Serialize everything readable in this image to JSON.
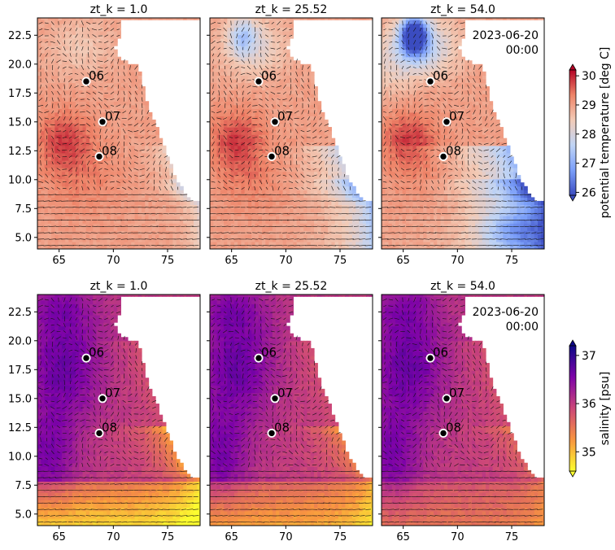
{
  "chart_data": {
    "type": "heatmap",
    "layout": "2x3 grid of map panels with velocity quiver overlay",
    "xlim": [
      63,
      78
    ],
    "ylim": [
      4,
      24
    ],
    "x_ticks": [
      "65",
      "70",
      "75"
    ],
    "y_ticks": [
      "5.0",
      "7.5",
      "10.0",
      "12.5",
      "15.0",
      "17.5",
      "20.0",
      "22.5"
    ],
    "x_tick_values": [
      65,
      70,
      75
    ],
    "y_tick_values": [
      5,
      7.5,
      10,
      12.5,
      15,
      17.5,
      20,
      22.5
    ],
    "panel_titles": [
      "zt_k = 1.0",
      "zt_k = 25.52",
      "zt_k = 54.0"
    ],
    "timestamp": [
      "2023-06-20",
      "00:00"
    ],
    "stations": [
      {
        "label": "06",
        "lon": 67.5,
        "lat": 18.5
      },
      {
        "label": "07",
        "lon": 69.0,
        "lat": 15.0
      },
      {
        "label": "08",
        "lon": 68.7,
        "lat": 12.0
      }
    ],
    "rows": [
      {
        "variable": "potential temperature",
        "colorbar_label": "potential temperature [deg C]",
        "colorbar_range": [
          25.9,
          30.2
        ],
        "colorbar_ticks": [
          "26",
          "27",
          "28",
          "29",
          "30"
        ],
        "colorbar_tick_values": [
          26,
          27,
          28,
          29,
          30
        ],
        "colormap": [
          "#3b4cc0",
          "#7b9ff9",
          "#c0d4f5",
          "#f2cbb7",
          "#ee8468",
          "#b40426"
        ]
      },
      {
        "variable": "salinity",
        "colorbar_label": "salinity [psu]",
        "colorbar_range": [
          34.6,
          37.2
        ],
        "colorbar_ticks": [
          "35",
          "36",
          "37"
        ],
        "colorbar_tick_values": [
          35,
          36,
          37
        ],
        "colormap": [
          "#fcfd2f",
          "#f89540",
          "#cc4778",
          "#7e03a8",
          "#0d0887"
        ]
      }
    ]
  }
}
